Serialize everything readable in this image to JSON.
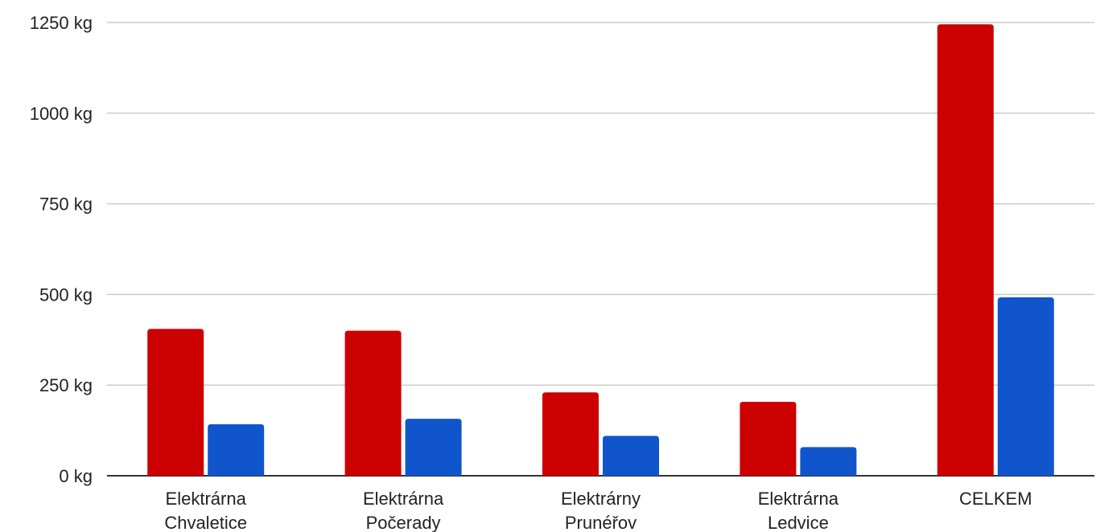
{
  "chart_data": {
    "type": "bar",
    "categories": [
      [
        "Elektrárna",
        "Chvaletice"
      ],
      [
        "Elektrárna",
        "Počerady"
      ],
      [
        "Elektrárny",
        "Prunéřov"
      ],
      [
        "Elektrárna",
        "Ledvice"
      ],
      [
        "CELKEM"
      ]
    ],
    "series": [
      {
        "color": "#cc0000",
        "values": [
          405,
          400,
          230,
          204,
          1245
        ]
      },
      {
        "color": "#1155cc",
        "values": [
          142,
          157,
          110,
          79,
          492
        ]
      }
    ],
    "y_ticks": [
      "0 kg",
      "250 kg",
      "500 kg",
      "750 kg",
      "1000 kg",
      "1250 kg"
    ],
    "y_tick_values": [
      0,
      250,
      500,
      750,
      1000,
      1250
    ],
    "ylim": [
      0,
      1250
    ],
    "unit": "kg",
    "grid": true,
    "legend": "none",
    "title": "",
    "xlabel": "",
    "ylabel": ""
  }
}
